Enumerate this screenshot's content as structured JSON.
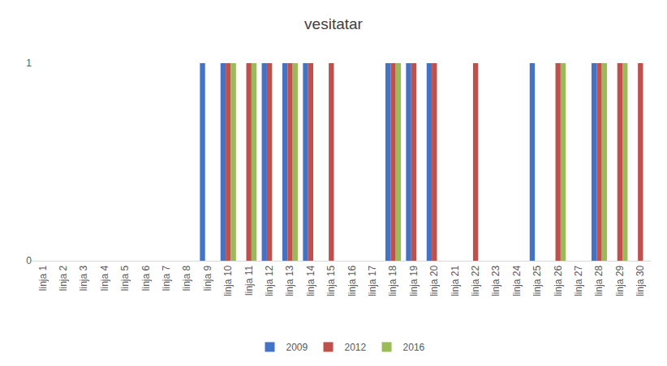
{
  "chart_data": {
    "type": "bar",
    "title": "vesitatar",
    "categories": [
      "linja 1",
      "linja 2",
      "linja 3",
      "linja 4",
      "linja 5",
      "linja 6",
      "linja 7",
      "linja 8",
      "linja 9",
      "linja 10",
      "linja 11",
      "linja 12",
      "linja 13",
      "linja 14",
      "linja 15",
      "linja 16",
      "linja 17",
      "linja 18",
      "linja 19",
      "linja 20",
      "linja 21",
      "linja 22",
      "linja 23",
      "linja 24",
      "linja 25",
      "linja 26",
      "linja 27",
      "linja 28",
      "linja 29",
      "linja 30"
    ],
    "series": [
      {
        "name": "2009",
        "color": "#4472c4",
        "values": [
          0,
          0,
          0,
          0,
          0,
          0,
          0,
          0,
          1,
          1,
          0,
          1,
          1,
          1,
          0,
          0,
          0,
          1,
          1,
          1,
          0,
          0,
          0,
          0,
          1,
          0,
          0,
          1,
          0,
          0
        ]
      },
      {
        "name": "2012",
        "color": "#c0504d",
        "values": [
          0,
          0,
          0,
          0,
          0,
          0,
          0,
          0,
          0,
          1,
          1,
          1,
          1,
          1,
          1,
          0,
          0,
          1,
          1,
          1,
          0,
          1,
          0,
          0,
          0,
          1,
          0,
          1,
          1,
          1
        ]
      },
      {
        "name": "2016",
        "color": "#9bbb59",
        "values": [
          0,
          0,
          0,
          0,
          0,
          0,
          0,
          0,
          0,
          1,
          1,
          0,
          1,
          0,
          0,
          0,
          0,
          1,
          0,
          0,
          0,
          0,
          0,
          0,
          0,
          1,
          0,
          1,
          1,
          0
        ]
      }
    ],
    "ylim": [
      0,
      1
    ],
    "yticks": [
      0,
      1
    ],
    "grid": true,
    "legend": "bottom"
  }
}
